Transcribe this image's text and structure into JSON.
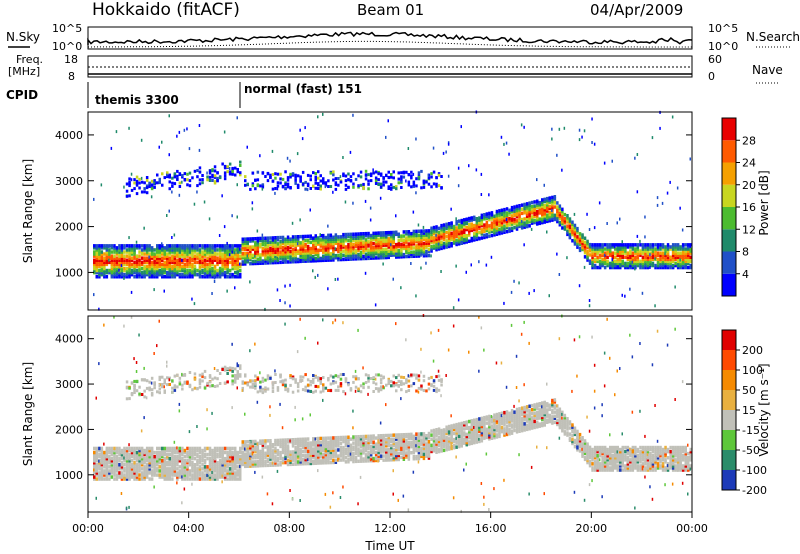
{
  "header": {
    "title": "Hokkaido (fitACF)",
    "beam": "Beam 01",
    "date": "04/Apr/2009"
  },
  "status_panels": {
    "nsky_label": "N.Sky",
    "nsearch_label": "N.Search",
    "left_ticks_top": [
      "10^5",
      "10^0"
    ],
    "right_ticks_top": [
      "10^5",
      "10^0"
    ],
    "freq_label": [
      "Freq.",
      "[MHz]"
    ],
    "freq_ticks": [
      "18",
      "8"
    ],
    "nave_ticks": [
      "60",
      "0"
    ],
    "nave_label": "Nave",
    "cpid_label": "CPID",
    "cpid_modes": [
      {
        "name": "themis 3300",
        "start_hour": 0
      },
      {
        "name": "normal (fast) 151",
        "start_hour": 6
      }
    ]
  },
  "chart_data": [
    {
      "type": "heatmap",
      "name": "power",
      "ylabel": "Slant Range [km]",
      "yticks": [
        "1000",
        "2000",
        "3000",
        "4000"
      ],
      "ylim": [
        180,
        4500
      ],
      "xlim": [
        0,
        24
      ],
      "colorbar_label": "Power [dB]",
      "colorbar_ticks": [
        "4",
        "8",
        "12",
        "16",
        "20",
        "24",
        "28"
      ],
      "colors": [
        "#0000ff",
        "#2050c8",
        "#1f8a6a",
        "#4cbc30",
        "#c8d620",
        "#f5a000",
        "#ff5a00",
        "#e80000"
      ]
    },
    {
      "type": "heatmap",
      "name": "velocity",
      "ylabel": "Slant Range [km]",
      "yticks": [
        "1000",
        "2000",
        "3000",
        "4000"
      ],
      "ylim": [
        180,
        4500
      ],
      "xlim": [
        0,
        24
      ],
      "colorbar_label": "Velocity [m s⁻¹]",
      "colorbar_ticks": [
        "200",
        "100",
        "50",
        "15",
        "-15",
        "-50",
        "-100",
        "-200"
      ],
      "colors": [
        "#1c3ab8",
        "#2a8c6a",
        "#5ec73a",
        "#c0c0b8",
        "#e8b040",
        "#f58a00",
        "#ff4a00",
        "#e00000"
      ]
    }
  ],
  "xaxis": {
    "ticks": [
      "00:00",
      "04:00",
      "08:00",
      "12:00",
      "16:00",
      "20:00",
      "00:00"
    ],
    "label": "Time UT"
  }
}
